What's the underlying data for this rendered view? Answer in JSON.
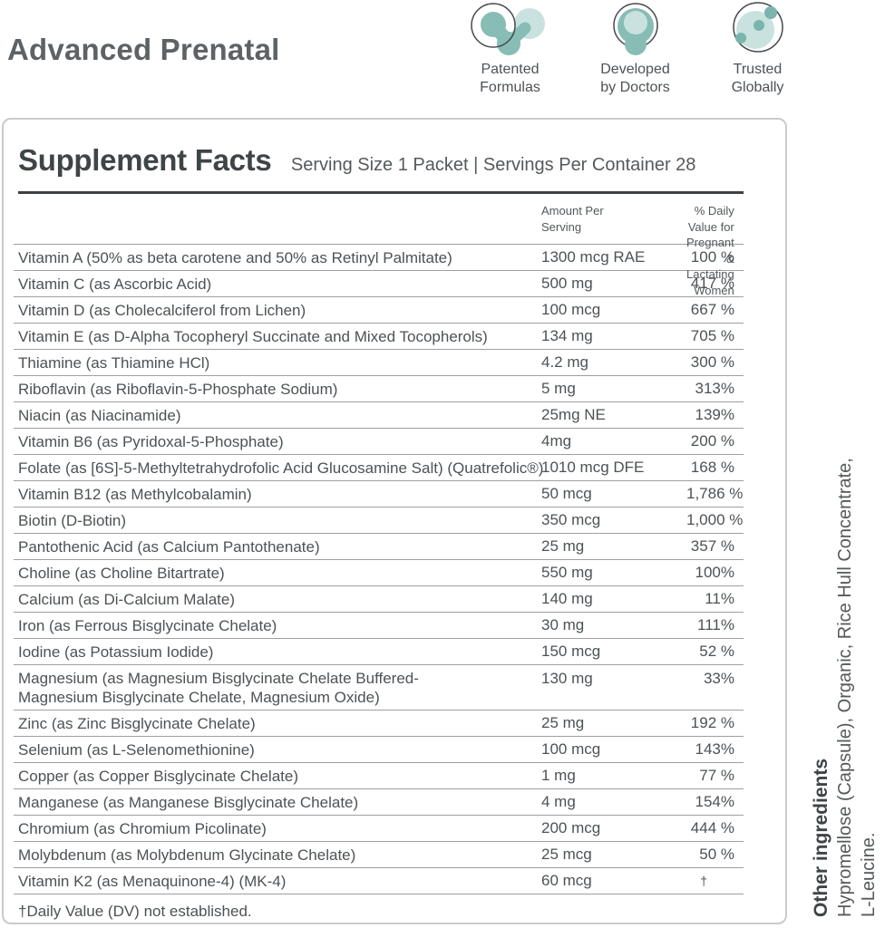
{
  "header": {
    "title": "Advanced Prenatal",
    "badges": [
      {
        "icon": "molecule-icon",
        "label": "Patented\nFormulas"
      },
      {
        "icon": "stethoscope-cell-icon",
        "label": "Developed\nby Doctors"
      },
      {
        "icon": "globe-icon",
        "label": "Trusted\nGlobally"
      }
    ]
  },
  "panel": {
    "title": "Supplement Facts",
    "serving_info": "Serving Size 1 Packet | Servings Per Container 28",
    "columns": {
      "amount": [
        "Amount Per",
        "Serving"
      ],
      "dv": [
        "% Daily Value for Pregnant",
        "& Lactating Women"
      ]
    },
    "rows": [
      {
        "name": "Vitamin A (50% as beta carotene and 50% as Retinyl Palmitate)",
        "amount": "1300 mcg RAE",
        "dv": "100 %"
      },
      {
        "name": "Vitamin C (as Ascorbic Acid)",
        "amount": "500 mg",
        "dv": "417 %"
      },
      {
        "name": "Vitamin D (as Cholecalciferol from Lichen)",
        "amount": "100 mcg",
        "dv": "667 %"
      },
      {
        "name": "Vitamin E (as D-Alpha Tocopheryl Succinate and Mixed Tocopherols)",
        "amount": "134 mg",
        "dv": "705 %"
      },
      {
        "name": "Thiamine (as Thiamine HCl)",
        "amount": "4.2 mg",
        "dv": "300 %"
      },
      {
        "name": "Riboflavin (as Riboflavin-5-Phosphate Sodium)",
        "amount": "5 mg",
        "dv": "313%"
      },
      {
        "name": "Niacin (as Niacinamide)",
        "amount": "25mg NE",
        "dv": "139%"
      },
      {
        "name": "Vitamin B6 (as Pyridoxal-5-Phosphate)",
        "amount": "4mg",
        "dv": "200 %"
      },
      {
        "name": "Folate (as [6S]-5-Methyltetrahydrofolic Acid Glucosamine Salt) (Quatrefolic®)",
        "amount": "1010 mcg DFE",
        "dv": "168 %"
      },
      {
        "name": "Vitamin B12 (as Methylcobalamin)",
        "amount": "50 mcg",
        "dv": "1,786 %"
      },
      {
        "name": "Biotin (D-Biotin)",
        "amount": "350 mcg",
        "dv": "1,000 %"
      },
      {
        "name": "Pantothenic Acid (as Calcium Pantothenate)",
        "amount": "25 mg",
        "dv": "357 %"
      },
      {
        "name": "Choline (as Choline Bitartrate)",
        "amount": "550 mg",
        "dv": "100%"
      },
      {
        "name": "Calcium (as Di-Calcium Malate)",
        "amount": "140 mg",
        "dv": "11%"
      },
      {
        "name": "Iron (as Ferrous Bisglycinate Chelate)",
        "amount": "30 mg",
        "dv": "111%"
      },
      {
        "name": "Iodine (as Potassium Iodide)",
        "amount": "150 mcg",
        "dv": "52 %"
      },
      {
        "name": "Magnesium (as Magnesium Bisglycinate Chelate Buffered-",
        "name2": "Magnesium Bisglycinate Chelate, Magnesium Oxide)",
        "amount": "130 mg",
        "dv": "33%"
      },
      {
        "name": "Zinc (as Zinc Bisglycinate Chelate)",
        "amount": "25 mg",
        "dv": "192 %"
      },
      {
        "name": "Selenium (as L-Selenomethionine)",
        "amount": "100 mcg",
        "dv": "143%"
      },
      {
        "name": "Copper (as Copper Bisglycinate Chelate)",
        "amount": "1 mg",
        "dv": "77 %"
      },
      {
        "name": "Manganese (as Manganese Bisglycinate Chelate)",
        "amount": "4 mg",
        "dv": "154%"
      },
      {
        "name": "Chromium (as Chromium Picolinate)",
        "amount": "200 mcg",
        "dv": "444 %"
      },
      {
        "name": "Molybdenum (as Molybdenum Glycinate Chelate)",
        "amount": "25 mcg",
        "dv": "50 %"
      },
      {
        "name": "Vitamin K2 (as Menaquinone-4) (MK-4)",
        "amount": "60 mcg",
        "dv": "†"
      }
    ],
    "footnote": "†Daily Value (DV) not established."
  },
  "side_note": {
    "title": "Other ingredients",
    "line1": "Hypromellose (Capsule), Organic, Rice Hull Concentrate,",
    "line2": "L-Leucine."
  },
  "colors": {
    "teal_medium": "#87bdb5",
    "teal_light": "#c9e2df",
    "teal_dot": "#7ab4ad",
    "icon_outline": "#45494d",
    "text": "#4d5255",
    "rule_dark": "#3c4144",
    "rule_thin": "#9f9f9f",
    "panel_border": "#c9cbcb"
  }
}
